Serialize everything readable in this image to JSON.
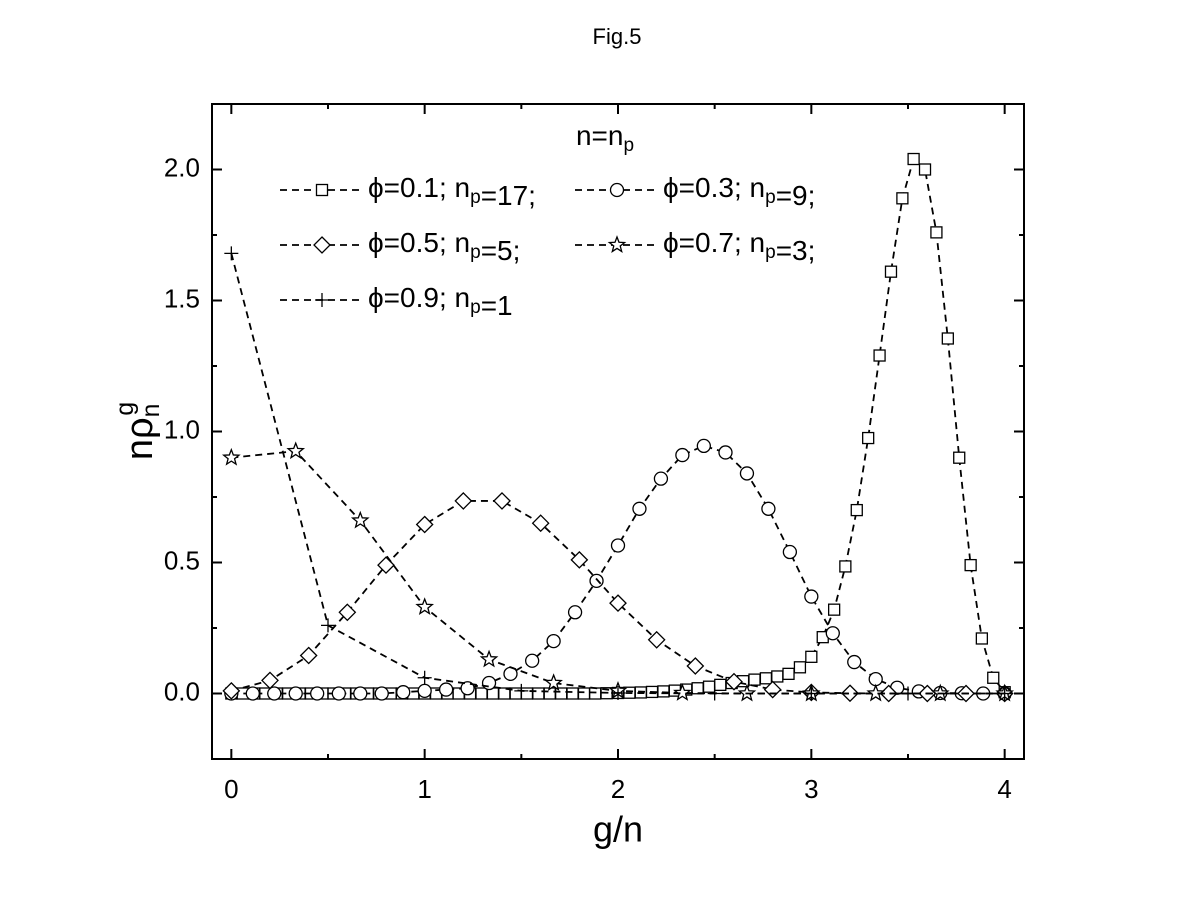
{
  "chart_data": {
    "type": "line",
    "title": "Fig.5",
    "x_label": "g/n",
    "y_label": "nρng",
    "legend_title": "n=np",
    "xlim": [
      -0.1,
      4.1
    ],
    "ylim": [
      -0.25,
      2.25
    ],
    "xticks": [
      0,
      1,
      2,
      3,
      4
    ],
    "yticks": [
      {
        "value": 0,
        "label": "0.0"
      },
      0.5,
      {
        "value": 1,
        "label": "1.0"
      },
      1.5,
      {
        "value": 2,
        "label": "2.0"
      }
    ],
    "minor_xticks": [
      0.5,
      1.5,
      2.5,
      3.5
    ],
    "minor_yticks": [
      -0.25,
      0.25,
      0.75,
      1.25,
      1.75,
      2.25
    ],
    "line_style": "dashed",
    "series": [
      {
        "name": "ϕ=0.1; np=17;",
        "color": "#000000",
        "marker": "square",
        "x": [
          0,
          0.059,
          0.118,
          0.176,
          0.235,
          0.294,
          0.353,
          0.412,
          0.471,
          0.529,
          0.588,
          0.647,
          0.706,
          0.765,
          0.824,
          0.882,
          0.941,
          1,
          1.059,
          1.118,
          1.176,
          1.235,
          1.294,
          1.353,
          1.412,
          1.471,
          1.529,
          1.588,
          1.647,
          1.706,
          1.765,
          1.824,
          1.882,
          1.941,
          2,
          2.059,
          2.118,
          2.176,
          2.235,
          2.294,
          2.353,
          2.412,
          2.471,
          2.529,
          2.588,
          2.647,
          2.706,
          2.765,
          2.824,
          2.882,
          2.941,
          3,
          3.059,
          3.118,
          3.176,
          3.235,
          3.294,
          3.353,
          3.412,
          3.471,
          3.529,
          3.588,
          3.647,
          3.706,
          3.765,
          3.824,
          3.882,
          3.941,
          4
        ],
        "values": [
          0,
          0,
          0,
          0,
          0,
          0,
          0,
          0,
          0,
          0,
          0,
          0,
          0,
          0,
          0,
          0,
          0,
          0,
          0,
          0,
          0,
          0,
          0,
          0,
          0,
          0,
          0,
          0,
          0,
          0,
          0,
          0,
          0,
          0.001,
          0.002,
          0.003,
          0.004,
          0.006,
          0.008,
          0.011,
          0.015,
          0.02,
          0.026,
          0.033,
          0.04,
          0.047,
          0.053,
          0.058,
          0.065,
          0.075,
          0.1,
          0.14,
          0.215,
          0.32,
          0.485,
          0.7,
          0.975,
          1.29,
          1.61,
          1.89,
          2.04,
          2.0,
          1.76,
          1.355,
          0.9,
          0.49,
          0.21,
          0.06,
          0.005
        ]
      },
      {
        "name": "ϕ=0.3; np=9;",
        "color": "#000000",
        "marker": "circle",
        "x": [
          0,
          0.111,
          0.222,
          0.333,
          0.444,
          0.556,
          0.667,
          0.778,
          0.889,
          1,
          1.111,
          1.222,
          1.333,
          1.444,
          1.556,
          1.667,
          1.778,
          1.889,
          2,
          2.111,
          2.222,
          2.333,
          2.444,
          2.556,
          2.667,
          2.778,
          2.889,
          3,
          3.111,
          3.222,
          3.333,
          3.444,
          3.556,
          3.667,
          3.778,
          3.889,
          4
        ],
        "values": [
          0,
          0,
          0,
          0,
          0,
          0,
          0,
          0,
          0.005,
          0.01,
          0.015,
          0.02,
          0.04,
          0.075,
          0.125,
          0.2,
          0.31,
          0.43,
          0.565,
          0.705,
          0.82,
          0.91,
          0.945,
          0.92,
          0.84,
          0.705,
          0.54,
          0.37,
          0.23,
          0.12,
          0.055,
          0.022,
          0.008,
          0.002,
          0.001,
          0,
          0
        ]
      },
      {
        "name": "ϕ=0.5; np=5;",
        "color": "#000000",
        "marker": "diamond",
        "x": [
          0,
          0.2,
          0.4,
          0.6,
          0.8,
          1,
          1.2,
          1.4,
          1.6,
          1.8,
          2,
          2.2,
          2.4,
          2.6,
          2.8,
          3,
          3.2,
          3.4,
          3.6,
          3.8,
          4
        ],
        "values": [
          0.01,
          0.05,
          0.145,
          0.31,
          0.49,
          0.645,
          0.735,
          0.735,
          0.65,
          0.51,
          0.345,
          0.205,
          0.105,
          0.045,
          0.015,
          0.004,
          0.001,
          0,
          0,
          0,
          0
        ]
      },
      {
        "name": "ϕ=0.7; np=3;",
        "color": "#000000",
        "marker": "star",
        "x": [
          0,
          0.333,
          0.667,
          1,
          1.333,
          1.667,
          2,
          2.333,
          2.667,
          3,
          3.333,
          3.667,
          4
        ],
        "values": [
          0.9,
          0.925,
          0.66,
          0.33,
          0.13,
          0.04,
          0.01,
          0.002,
          0,
          0,
          0,
          0,
          0
        ]
      },
      {
        "name": "ϕ=0.9; np=1",
        "color": "#000000",
        "marker": "plus",
        "x": [
          0,
          0.5,
          1,
          1.5,
          2,
          2.5,
          3,
          3.5,
          4
        ],
        "values": [
          1.68,
          0.26,
          0.06,
          0.01,
          0.002,
          0,
          0,
          0,
          0
        ]
      }
    ]
  }
}
